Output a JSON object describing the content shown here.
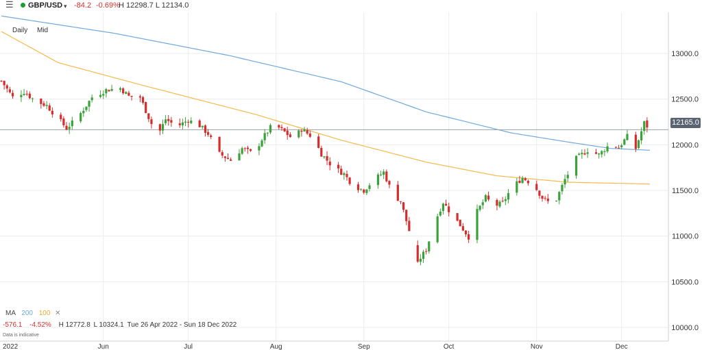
{
  "header": {
    "menu_icon": "menu-icon",
    "symbol": "GBP/USD",
    "symbol_caret": "▾",
    "change": "-84.2",
    "change_pct": "-0.69%",
    "high_low": "H 12298.7 L 12134.0",
    "status_color": "#1e9e2e"
  },
  "controls": {
    "interval": "Daily",
    "price_type": "Mid"
  },
  "indicators": {
    "label": "MA",
    "ma1": "200",
    "ma2": "100",
    "remove": "✕",
    "ma1_color": "#6fa8dc",
    "ma2_color": "#f6b94a"
  },
  "range_stats": {
    "change": "-576.1",
    "change_pct": "-4.52%",
    "high": "H 12772.8",
    "low": "L 10324.1",
    "period": "Tue 26 Apr 2022 - Sun 18 Dec 2022"
  },
  "disclaimer": "Data is indicative",
  "current_price": "12165.0",
  "chart_data": {
    "type": "candlestick",
    "x_ticks": [
      "2022",
      "Jun",
      "Jul",
      "Aug",
      "Sep",
      "Oct",
      "Nov",
      "Dec"
    ],
    "y_ticks": [
      "13000.0",
      "12500.0",
      "12000.0",
      "11500.0",
      "11000.0",
      "10500.0",
      "10000.0"
    ],
    "ylim": [
      9850,
      13450
    ],
    "up_color": "#3aa23a",
    "down_color": "#d62c2c",
    "close_path": [
      [
        0,
        12700
      ],
      [
        4,
        12520
      ],
      [
        8,
        12580
      ],
      [
        12,
        12480
      ],
      [
        16,
        12430
      ],
      [
        20,
        12290
      ],
      [
        23,
        12180
      ],
      [
        27,
        12300
      ],
      [
        32,
        12520
      ],
      [
        37,
        12600
      ],
      [
        42,
        12620
      ],
      [
        45,
        12530
      ],
      [
        49,
        12520
      ],
      [
        52,
        12300
      ],
      [
        55,
        12090
      ],
      [
        58,
        12280
      ],
      [
        62,
        12200
      ],
      [
        66,
        12270
      ],
      [
        70,
        12210
      ],
      [
        73,
        12120
      ],
      [
        77,
        11900
      ],
      [
        81,
        11830
      ],
      [
        85,
        11960
      ],
      [
        89,
        11900
      ],
      [
        92,
        12060
      ],
      [
        96,
        12230
      ],
      [
        100,
        12140
      ],
      [
        103,
        12060
      ],
      [
        106,
        12170
      ],
      [
        110,
        12080
      ],
      [
        113,
        11900
      ],
      [
        117,
        11760
      ],
      [
        121,
        11680
      ],
      [
        124,
        11560
      ],
      [
        128,
        11500
      ],
      [
        131,
        11600
      ],
      [
        135,
        11700
      ],
      [
        138,
        11470
      ],
      [
        141,
        11380
      ],
      [
        144,
        11060
      ],
      [
        147,
        10720
      ],
      [
        150,
        10850
      ],
      [
        153,
        11150
      ],
      [
        156,
        11370
      ],
      [
        159,
        11240
      ],
      [
        162,
        11120
      ],
      [
        165,
        10990
      ],
      [
        168,
        11270
      ],
      [
        171,
        11420
      ],
      [
        174,
        11330
      ],
      [
        177,
        11360
      ],
      [
        180,
        11520
      ],
      [
        184,
        11640
      ],
      [
        188,
        11560
      ],
      [
        191,
        11420
      ],
      [
        195,
        11330
      ],
      [
        199,
        11620
      ],
      [
        203,
        11850
      ],
      [
        207,
        11940
      ],
      [
        211,
        11890
      ],
      [
        215,
        12010
      ],
      [
        218,
        11970
      ],
      [
        221,
        12090
      ],
      [
        224,
        11960
      ],
      [
        227,
        12240
      ],
      [
        229,
        12165
      ]
    ],
    "ma_200": [
      [
        0,
        13410
      ],
      [
        40,
        13220
      ],
      [
        80,
        12980
      ],
      [
        120,
        12690
      ],
      [
        150,
        12360
      ],
      [
        180,
        12130
      ],
      [
        200,
        12030
      ],
      [
        215,
        11960
      ],
      [
        229,
        11940
      ]
    ],
    "ma_100": [
      [
        0,
        13240
      ],
      [
        20,
        12900
      ],
      [
        50,
        12650
      ],
      [
        90,
        12330
      ],
      [
        120,
        12050
      ],
      [
        150,
        11810
      ],
      [
        175,
        11660
      ],
      [
        200,
        11590
      ],
      [
        229,
        11570
      ]
    ]
  }
}
